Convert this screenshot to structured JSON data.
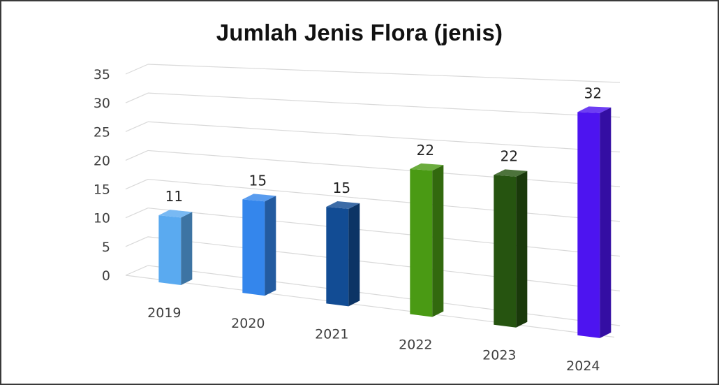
{
  "chart_data": {
    "type": "bar",
    "title": "Jumlah Jenis Flora (jenis)",
    "xlabel": "",
    "ylabel": "",
    "categories": [
      "2019",
      "2020",
      "2021",
      "2022",
      "2023",
      "2024"
    ],
    "values": [
      11,
      15,
      15,
      22,
      22,
      32
    ],
    "data_labels": [
      "11",
      "15",
      "15",
      "22",
      "22",
      "32"
    ],
    "ylim": [
      0,
      35
    ],
    "yticks": [
      0,
      5,
      10,
      15,
      20,
      25,
      30,
      35
    ],
    "ytick_labels": [
      "0",
      "5",
      "10",
      "15",
      "20",
      "25",
      "30",
      "35"
    ],
    "grid": true,
    "legend": "none",
    "style": "3d-column",
    "colors": [
      "#5aaaf0",
      "#3486ec",
      "#124c94",
      "#4a9a14",
      "#265410",
      "#4d14f0"
    ]
  }
}
